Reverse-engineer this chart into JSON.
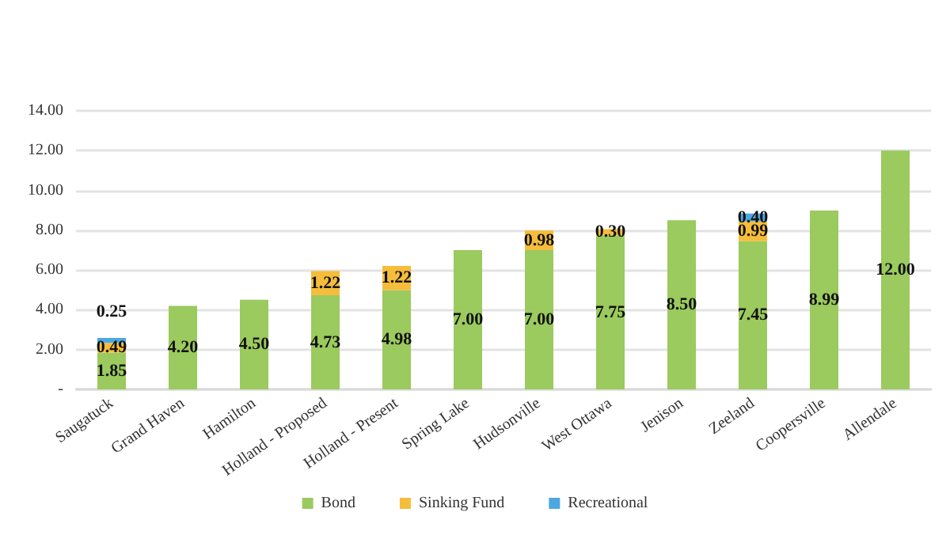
{
  "chart_data": {
    "type": "bar",
    "stacked": true,
    "categories": [
      "Saugatuck",
      "Grand Haven",
      "Hamilton",
      "Holland - Proposed",
      "Holland - Present",
      "Spring Lake",
      "Hudsonville",
      "West Ottawa",
      "Jenison",
      "Zeeland",
      "Coopersville",
      "Allendale"
    ],
    "series": [
      {
        "name": "Bond",
        "color": "#9bca5e",
        "values": [
          1.85,
          4.2,
          4.5,
          4.73,
          4.98,
          7.0,
          7.0,
          7.75,
          8.5,
          7.45,
          8.99,
          12.0
        ],
        "value_labels": [
          "1.85",
          "4.20",
          "4.50",
          "4.73",
          "4.98",
          "7.00",
          "7.00",
          "7.75",
          "8.50",
          "7.45",
          "8.99",
          "12.00"
        ]
      },
      {
        "name": "Sinking Fund",
        "color": "#f5bd3b",
        "values": [
          0.49,
          null,
          null,
          1.22,
          1.22,
          null,
          0.98,
          0.3,
          null,
          0.99,
          null,
          null
        ],
        "value_labels": [
          "0.49",
          null,
          null,
          "1.22",
          "1.22",
          null,
          "0.98",
          "0.30",
          null,
          "0.99",
          null,
          null
        ]
      },
      {
        "name": "Recreational",
        "color": "#4ea7e0",
        "values": [
          0.25,
          null,
          null,
          null,
          null,
          null,
          null,
          null,
          null,
          0.4,
          null,
          null
        ],
        "value_labels": [
          "0.25",
          null,
          null,
          null,
          null,
          null,
          null,
          null,
          null,
          "0.40",
          null,
          null
        ]
      }
    ],
    "ylim": [
      0,
      14
    ],
    "yticks": [
      {
        "value": 0,
        "label": "-"
      },
      {
        "value": 2,
        "label": "2.00"
      },
      {
        "value": 4,
        "label": "4.00"
      },
      {
        "value": 6,
        "label": "6.00"
      },
      {
        "value": 8,
        "label": "8.00"
      },
      {
        "value": 10,
        "label": "10.00"
      },
      {
        "value": 12,
        "label": "12.00"
      },
      {
        "value": 14,
        "label": "14.00"
      }
    ],
    "grid": "y",
    "legend": "bottom"
  }
}
